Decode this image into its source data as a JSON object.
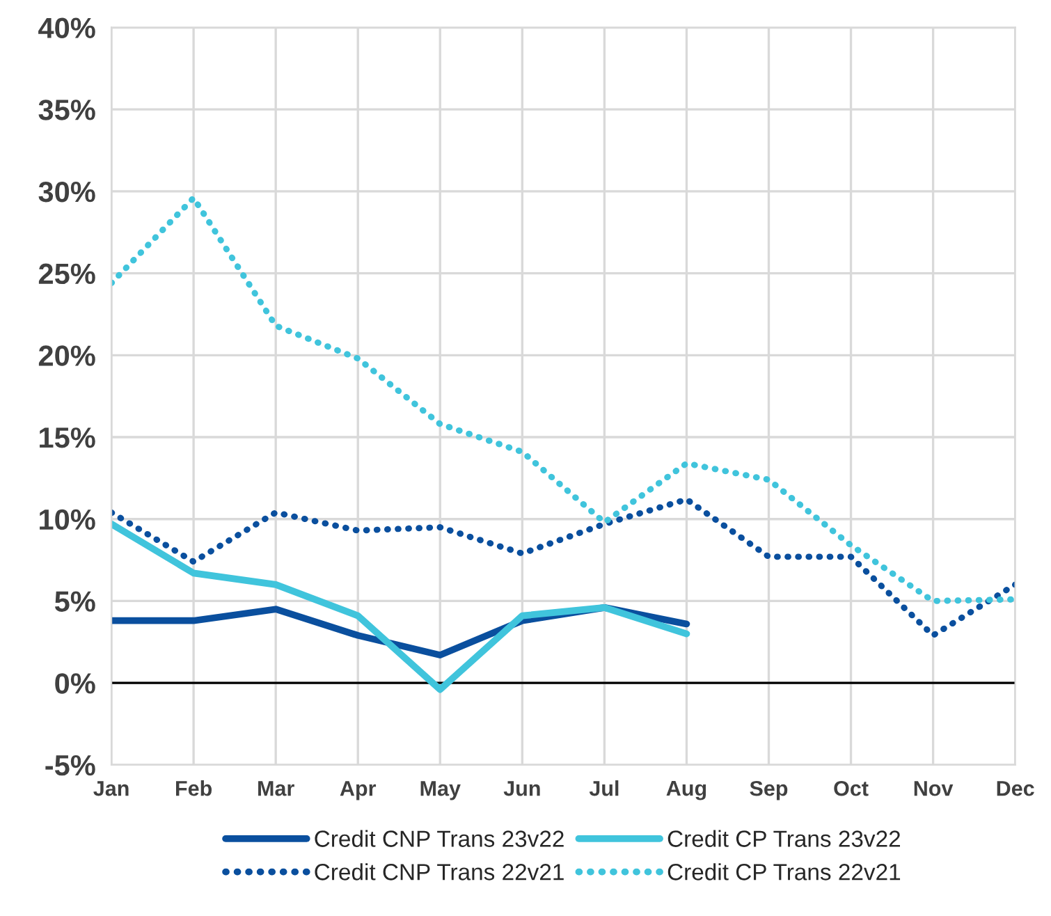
{
  "chart_data": {
    "type": "line",
    "categories": [
      "Jan",
      "Feb",
      "Mar",
      "Apr",
      "May",
      "Jun",
      "Jul",
      "Aug",
      "Sep",
      "Oct",
      "Nov",
      "Dec"
    ],
    "series": [
      {
        "name": "Credit CNP Trans 23v22",
        "color": "#0a4f9e",
        "line_style": "solid",
        "values": [
          3.8,
          3.8,
          4.5,
          2.9,
          1.7,
          3.8,
          4.6,
          3.6,
          null,
          null,
          null,
          null
        ]
      },
      {
        "name": "Credit CP Trans 23v22",
        "color": "#40c4dc",
        "line_style": "solid",
        "values": [
          9.7,
          6.7,
          6.0,
          4.1,
          -0.4,
          4.1,
          4.6,
          3.0,
          null,
          null,
          null,
          null
        ]
      },
      {
        "name": "Credit CNP Trans 22v21",
        "color": "#0a4f9e",
        "line_style": "dotted",
        "values": [
          10.4,
          7.4,
          10.4,
          9.3,
          9.5,
          7.9,
          9.7,
          11.2,
          7.7,
          7.7,
          2.9,
          6.0
        ]
      },
      {
        "name": "Credit CP Trans 22v21",
        "color": "#40c4dc",
        "line_style": "dotted",
        "values": [
          24.4,
          29.6,
          21.8,
          19.8,
          15.8,
          14.1,
          9.8,
          13.4,
          12.4,
          8.4,
          5.0,
          5.1
        ]
      }
    ],
    "ylim": [
      -5,
      40
    ],
    "yticks": [
      {
        "value": -5,
        "label": "-5%"
      },
      {
        "value": 0,
        "label": "0%"
      },
      {
        "value": 5,
        "label": "5%"
      },
      {
        "value": 10,
        "label": "10%"
      },
      {
        "value": 15,
        "label": "15%"
      },
      {
        "value": 20,
        "label": "20%"
      },
      {
        "value": 25,
        "label": "25%"
      },
      {
        "value": 30,
        "label": "30%"
      },
      {
        "value": 35,
        "label": "35%"
      },
      {
        "value": 40,
        "label": "40%"
      }
    ],
    "ref_lines": [
      {
        "axis": "y",
        "value": 0,
        "color": "#000000",
        "line_style": "solid"
      }
    ],
    "grid": true,
    "legend": "bottom",
    "marker": "none"
  }
}
